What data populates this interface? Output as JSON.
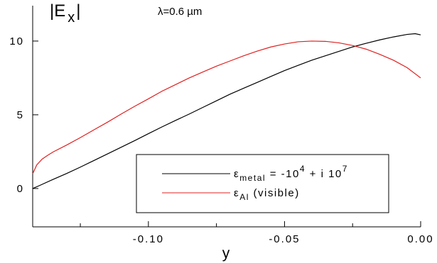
{
  "chart_data": {
    "type": "line",
    "annotation": "λ=0.6 µm",
    "ylabel": {
      "main": "|E",
      "sub": "x",
      "close": "|"
    },
    "xlabel": "y",
    "xlim": [
      -0.1425,
      0.0
    ],
    "ylim": [
      -2.6,
      12.4
    ],
    "grid": false,
    "legend": "bottom-right",
    "x_ticks": [
      {
        "value": -0.1,
        "label": "-0.10"
      },
      {
        "value": -0.05,
        "label": "-0.05"
      },
      {
        "value": 0.0,
        "label": "0.00"
      }
    ],
    "x_minor_ticks": [
      -0.125,
      -0.075,
      -0.025
    ],
    "y_ticks": [
      {
        "value": 0,
        "label": "0"
      },
      {
        "value": 5,
        "label": "5"
      },
      {
        "value": 10,
        "label": "10"
      }
    ],
    "series": [
      {
        "name": "ε_metal = -10^4 + i 10^7",
        "legend": {
          "base": "ε",
          "sub": "metal",
          "rest": " = -10",
          "sup": "4",
          "rest2": " + i 10",
          "sup2": "7"
        },
        "color": "#000000",
        "points": [
          [
            -0.1425,
            0.0
          ],
          [
            -0.14,
            0.2
          ],
          [
            -0.135,
            0.62
          ],
          [
            -0.13,
            1.02
          ],
          [
            -0.125,
            1.45
          ],
          [
            -0.12,
            1.9
          ],
          [
            -0.115,
            2.35
          ],
          [
            -0.11,
            2.8
          ],
          [
            -0.105,
            3.25
          ],
          [
            -0.1,
            3.72
          ],
          [
            -0.095,
            4.18
          ],
          [
            -0.09,
            4.62
          ],
          [
            -0.085,
            5.05
          ],
          [
            -0.08,
            5.5
          ],
          [
            -0.075,
            5.95
          ],
          [
            -0.07,
            6.4
          ],
          [
            -0.065,
            6.8
          ],
          [
            -0.06,
            7.2
          ],
          [
            -0.055,
            7.6
          ],
          [
            -0.05,
            8.0
          ],
          [
            -0.045,
            8.35
          ],
          [
            -0.04,
            8.7
          ],
          [
            -0.035,
            9.0
          ],
          [
            -0.03,
            9.3
          ],
          [
            -0.025,
            9.6
          ],
          [
            -0.02,
            9.85
          ],
          [
            -0.015,
            10.08
          ],
          [
            -0.01,
            10.28
          ],
          [
            -0.005,
            10.45
          ],
          [
            -0.002,
            10.5
          ],
          [
            0.0,
            10.42
          ]
        ]
      },
      {
        "name": "ε_Al (visible)",
        "legend": {
          "base": "ε",
          "sub": "Al",
          "rest": " (visible)"
        },
        "color": "#e02020",
        "points": [
          [
            -0.1425,
            1.0
          ],
          [
            -0.141,
            1.6
          ],
          [
            -0.139,
            2.0
          ],
          [
            -0.137,
            2.25
          ],
          [
            -0.135,
            2.48
          ],
          [
            -0.13,
            2.95
          ],
          [
            -0.125,
            3.45
          ],
          [
            -0.12,
            3.98
          ],
          [
            -0.115,
            4.5
          ],
          [
            -0.11,
            5.05
          ],
          [
            -0.105,
            5.58
          ],
          [
            -0.1,
            6.08
          ],
          [
            -0.095,
            6.6
          ],
          [
            -0.09,
            7.05
          ],
          [
            -0.085,
            7.5
          ],
          [
            -0.08,
            7.9
          ],
          [
            -0.075,
            8.3
          ],
          [
            -0.07,
            8.65
          ],
          [
            -0.065,
            9.0
          ],
          [
            -0.06,
            9.32
          ],
          [
            -0.055,
            9.6
          ],
          [
            -0.05,
            9.8
          ],
          [
            -0.045,
            9.95
          ],
          [
            -0.04,
            10.0
          ],
          [
            -0.035,
            9.98
          ],
          [
            -0.03,
            9.88
          ],
          [
            -0.025,
            9.7
          ],
          [
            -0.02,
            9.45
          ],
          [
            -0.015,
            9.1
          ],
          [
            -0.01,
            8.7
          ],
          [
            -0.005,
            8.2
          ],
          [
            0.0,
            7.5
          ]
        ]
      }
    ]
  }
}
